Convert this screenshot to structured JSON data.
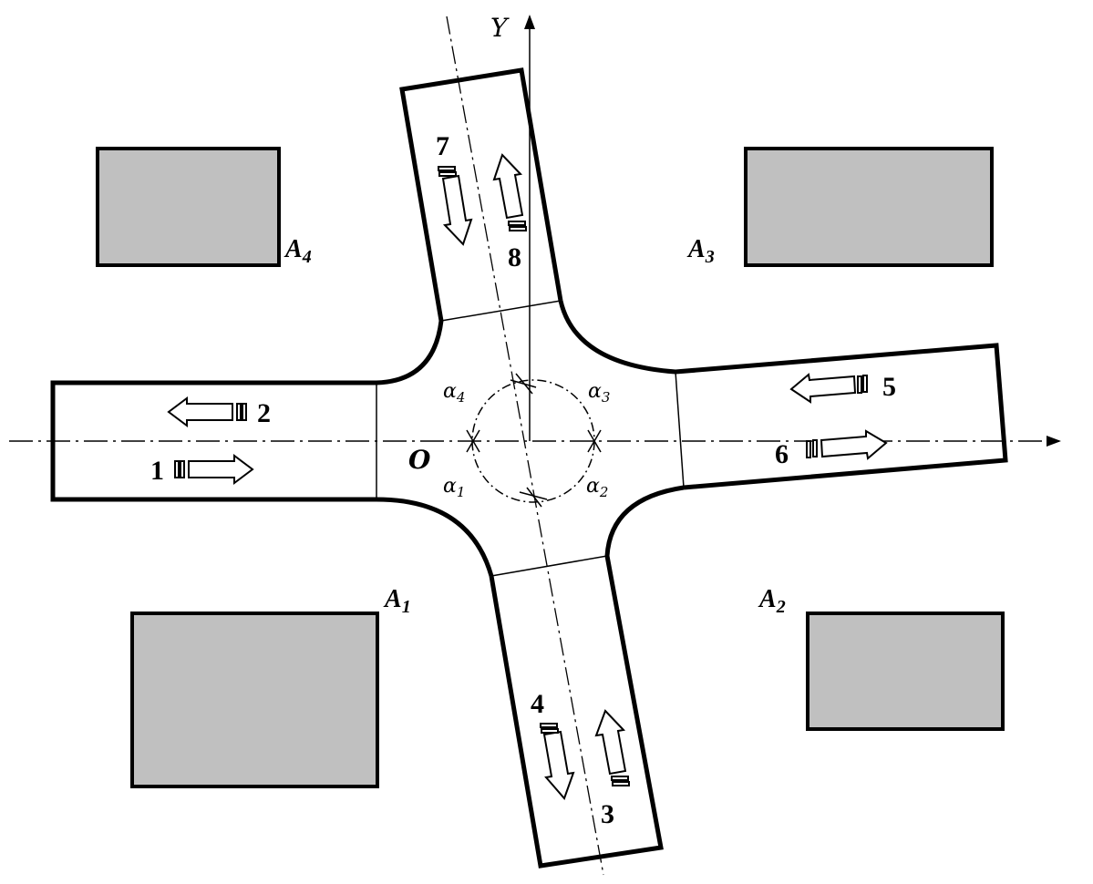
{
  "axes": {
    "y_label": "Y",
    "origin_label": "O"
  },
  "areas": [
    "A",
    "A",
    "A",
    "A"
  ],
  "area_subscripts": [
    "1",
    "2",
    "3",
    "4"
  ],
  "angles": [
    "α",
    "α",
    "α",
    "α"
  ],
  "angle_subscripts": [
    "1",
    "2",
    "3",
    "4"
  ],
  "lanes": [
    "1",
    "2",
    "3",
    "4",
    "5",
    "6",
    "7",
    "8"
  ],
  "colors": {
    "building_fill": "#c0c0c0",
    "line": "#000000"
  }
}
